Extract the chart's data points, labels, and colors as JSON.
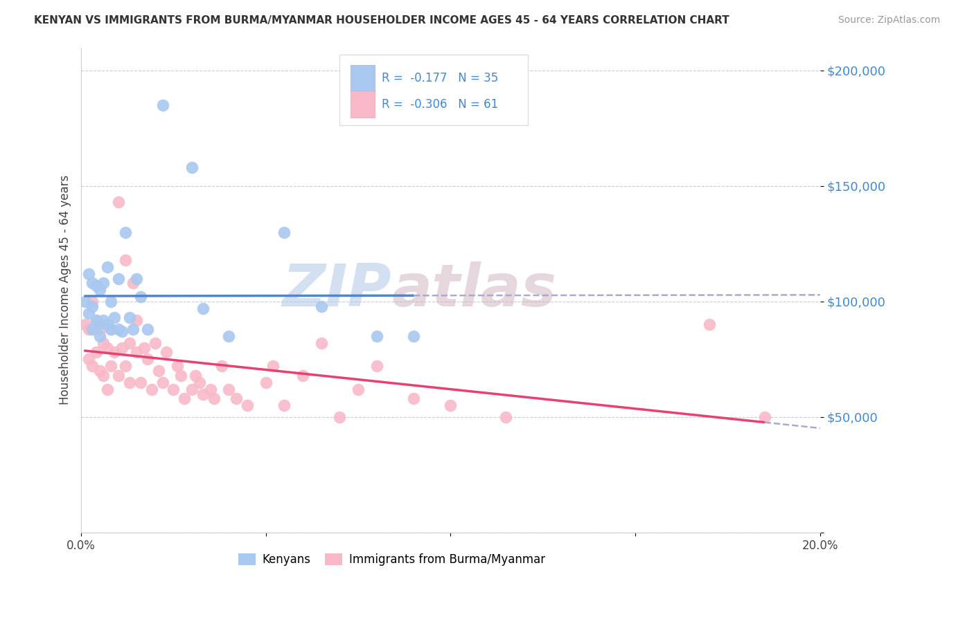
{
  "title": "KENYAN VS IMMIGRANTS FROM BURMA/MYANMAR HOUSEHOLDER INCOME AGES 45 - 64 YEARS CORRELATION CHART",
  "source": "Source: ZipAtlas.com",
  "ylabel": "Householder Income Ages 45 - 64 years",
  "xlim": [
    0.0,
    0.2
  ],
  "ylim": [
    0,
    210000
  ],
  "yticks": [
    0,
    50000,
    100000,
    150000,
    200000
  ],
  "ytick_labels": [
    "",
    "$50,000",
    "$100,000",
    "$150,000",
    "$200,000"
  ],
  "xticks": [
    0.0,
    0.05,
    0.1,
    0.15,
    0.2
  ],
  "xtick_labels": [
    "0.0%",
    "",
    "",
    "",
    "20.0%"
  ],
  "legend_r_kenya": "-0.177",
  "legend_n_kenya": "35",
  "legend_r_burma": "-0.306",
  "legend_n_burma": "61",
  "kenya_color": "#A8C8F0",
  "burma_color": "#F8B8C8",
  "kenya_line_color": "#5585C8",
  "burma_line_color": "#E84070",
  "dash_color": "#AAAACC",
  "watermark_zip": "ZIP",
  "watermark_atlas": "atlas",
  "kenya_points_x": [
    0.001,
    0.002,
    0.002,
    0.003,
    0.003,
    0.003,
    0.004,
    0.004,
    0.005,
    0.005,
    0.005,
    0.006,
    0.006,
    0.007,
    0.007,
    0.008,
    0.008,
    0.009,
    0.01,
    0.01,
    0.011,
    0.012,
    0.013,
    0.014,
    0.015,
    0.016,
    0.018,
    0.022,
    0.03,
    0.033,
    0.04,
    0.055,
    0.065,
    0.08,
    0.09
  ],
  "kenya_points_y": [
    100000,
    112000,
    95000,
    108000,
    98000,
    88000,
    107000,
    92000,
    105000,
    90000,
    85000,
    108000,
    92000,
    115000,
    90000,
    100000,
    88000,
    93000,
    110000,
    88000,
    87000,
    130000,
    93000,
    88000,
    110000,
    102000,
    88000,
    185000,
    158000,
    97000,
    85000,
    130000,
    98000,
    85000,
    85000
  ],
  "burma_points_x": [
    0.001,
    0.002,
    0.002,
    0.003,
    0.003,
    0.004,
    0.004,
    0.005,
    0.005,
    0.006,
    0.006,
    0.007,
    0.007,
    0.008,
    0.008,
    0.009,
    0.01,
    0.01,
    0.011,
    0.012,
    0.012,
    0.013,
    0.013,
    0.014,
    0.015,
    0.015,
    0.016,
    0.017,
    0.018,
    0.019,
    0.02,
    0.021,
    0.022,
    0.023,
    0.025,
    0.026,
    0.027,
    0.028,
    0.03,
    0.031,
    0.032,
    0.033,
    0.035,
    0.036,
    0.038,
    0.04,
    0.042,
    0.045,
    0.05,
    0.052,
    0.055,
    0.06,
    0.065,
    0.07,
    0.075,
    0.08,
    0.09,
    0.1,
    0.115,
    0.17,
    0.185
  ],
  "burma_points_y": [
    90000,
    88000,
    75000,
    100000,
    72000,
    92000,
    78000,
    88000,
    70000,
    82000,
    68000,
    80000,
    62000,
    88000,
    72000,
    78000,
    143000,
    68000,
    80000,
    118000,
    72000,
    82000,
    65000,
    108000,
    92000,
    78000,
    65000,
    80000,
    75000,
    62000,
    82000,
    70000,
    65000,
    78000,
    62000,
    72000,
    68000,
    58000,
    62000,
    68000,
    65000,
    60000,
    62000,
    58000,
    72000,
    62000,
    58000,
    55000,
    65000,
    72000,
    55000,
    68000,
    82000,
    50000,
    62000,
    72000,
    58000,
    55000,
    50000,
    90000,
    50000
  ],
  "kenya_line_x_start": 0.001,
  "kenya_line_x_solid_end": 0.09,
  "kenya_line_x_dash_end": 0.2,
  "burma_line_x_start": 0.001,
  "burma_line_x_solid_end": 0.185,
  "burma_line_x_dash_end": 0.2
}
